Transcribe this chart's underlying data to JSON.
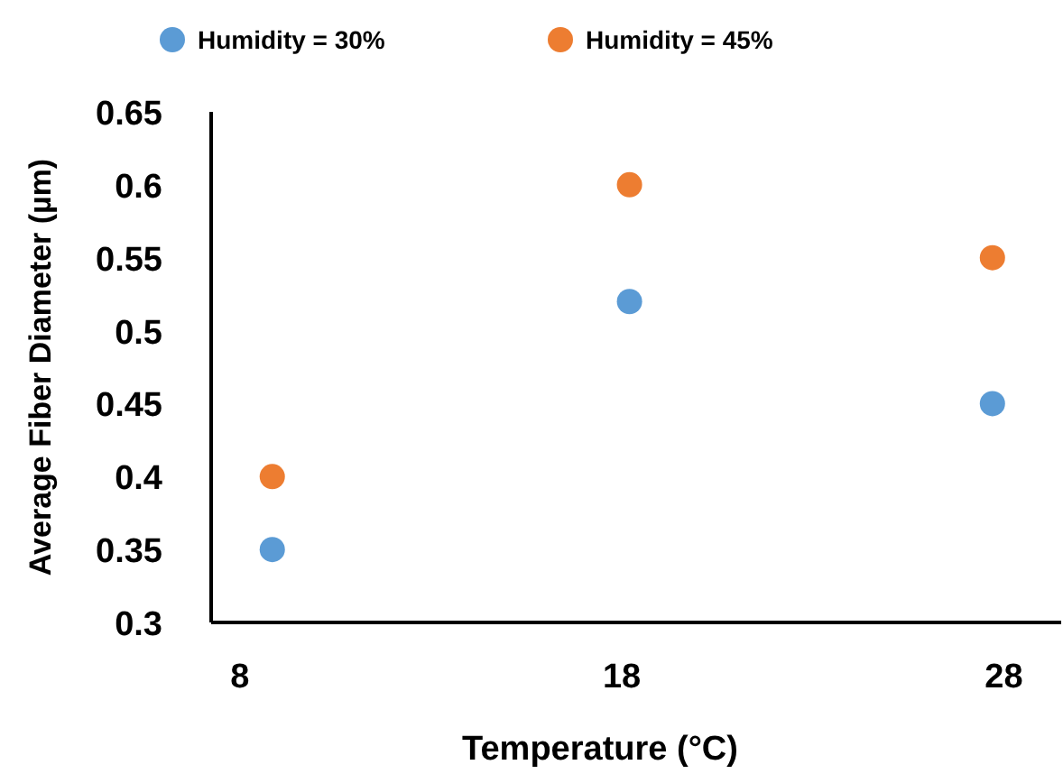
{
  "chart_data": {
    "type": "scatter",
    "xlabel": "Temperature (°C)",
    "ylabel": "Average Fiber Diameter (µm)",
    "x": [
      8.85,
      18.2,
      27.7
    ],
    "series": [
      {
        "name": "Humidity = 30%",
        "color": "#5b9bd5",
        "values": [
          0.35,
          0.52,
          0.45
        ]
      },
      {
        "name": "Humidity = 45%",
        "color": "#ed7d31",
        "values": [
          0.4,
          0.6,
          0.55
        ]
      }
    ],
    "xlim": [
      7.25,
      29.5
    ],
    "xticks": [
      8,
      18,
      28
    ],
    "ylim": [
      0.3,
      0.65
    ],
    "yticks": [
      {
        "value": 0.3,
        "label": "0.3"
      },
      {
        "value": 0.35,
        "label": "0.35"
      },
      {
        "value": 0.4,
        "label": "0.4"
      },
      {
        "value": 0.45,
        "label": "0.45"
      },
      {
        "value": 0.5,
        "label": "0.5"
      },
      {
        "value": 0.55,
        "label": "0.55"
      },
      {
        "value": 0.6,
        "label": "0.6"
      },
      {
        "value": 0.65,
        "label": "0.65"
      }
    ],
    "grid": false,
    "legend": "top",
    "marker": "circle"
  }
}
